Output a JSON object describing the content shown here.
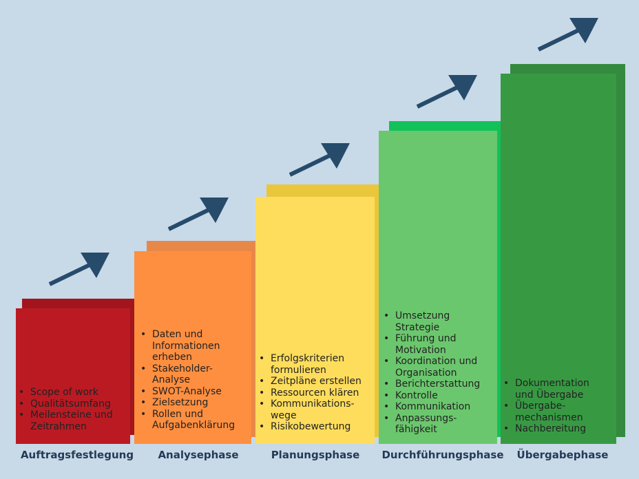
{
  "colors": {
    "background": "#c8d9e8",
    "arrow": "#264b6b",
    "phase_label": "#253a55"
  },
  "phases": [
    {
      "label": "Auftragsfestlegung",
      "color": "#bb1a23",
      "shadow_color": "#a3151d",
      "items": [
        "Scope of work",
        "Qualitätsumfang",
        "Meilensteine und Zeitrahmen"
      ]
    },
    {
      "label": "Analysephase",
      "color": "#fe8f40",
      "shadow_color": "#e88848",
      "items": [
        "Daten und Informationen erheben",
        "Stakeholder-Analyse",
        "SWOT-Analyse",
        "Zielsetzung",
        "Rollen und Aufgabenklärung"
      ]
    },
    {
      "label": "Planungsphase",
      "color": "#fedd5c",
      "shadow_color": "#eac63b",
      "items": [
        "Erfolgskriterien formulieren",
        "Zeitpläne erstellen",
        "Ressourcen klären",
        "Kommunikations-wege",
        "Risikobewertung"
      ]
    },
    {
      "label": "Durchführungsphase",
      "color": "#6bc76d",
      "shadow_color": "#11c15a",
      "items": [
        "Umsetzung Strategie",
        "Führung und Motivation",
        "Koordination und Organisation",
        "Berichterstattung",
        "Kontrolle",
        "Kommunikation",
        "Anpassungs-fähigkeit"
      ]
    },
    {
      "label": "Übergabephase",
      "color": "#379a43",
      "shadow_color": "#348a3e",
      "items": [
        "Dokumentation und Übergabe",
        "Übergabe-mechanismen",
        "Nachbereitung"
      ]
    }
  ]
}
